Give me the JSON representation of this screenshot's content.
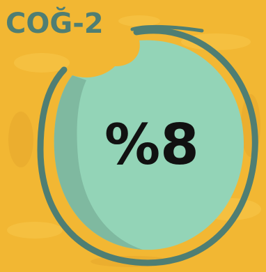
{
  "label": "COĞ-2",
  "value": "%8",
  "colors": {
    "background": "#f2b733",
    "circle_fill": "#93d4b7",
    "circle_shadow": "#7fb9a0",
    "outline": "#4f7e73",
    "label_text": "#4f7e73",
    "value_text": "#111111"
  }
}
